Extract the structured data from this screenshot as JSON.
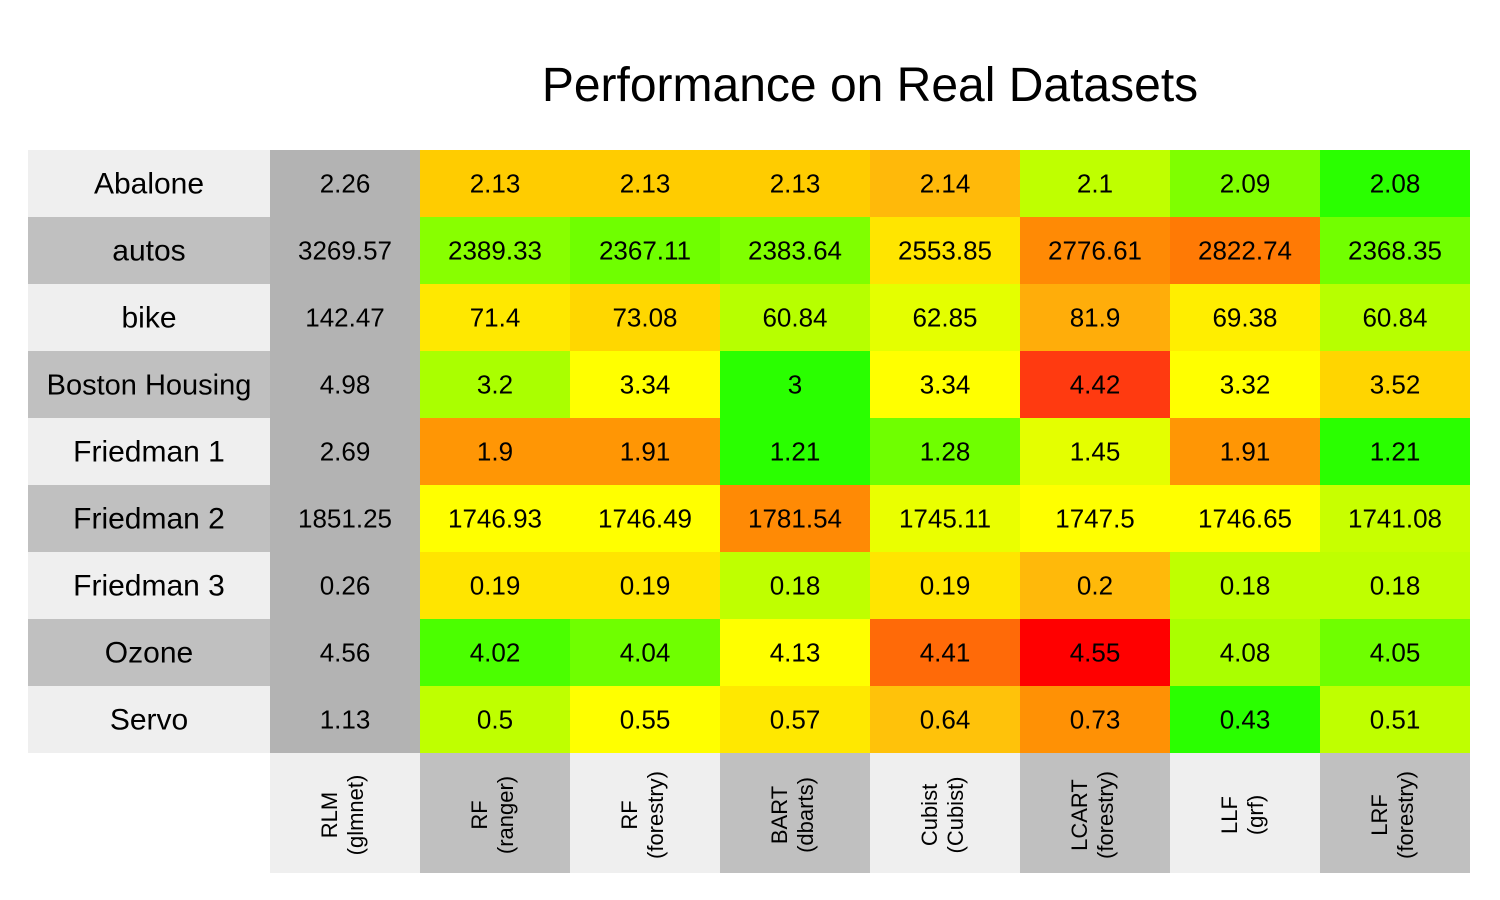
{
  "chart_data": {
    "type": "heatmap",
    "title": "Performance on Real Datasets",
    "rows": [
      "Abalone",
      "autos",
      "bike",
      "Boston Housing",
      "Friedman 1",
      "Friedman 2",
      "Friedman 3",
      "Ozone",
      "Servo"
    ],
    "columns": [
      {
        "name": "RLM",
        "package": "(glmnet)"
      },
      {
        "name": "RF",
        "package": "(ranger)"
      },
      {
        "name": "RF",
        "package": "(forestry)"
      },
      {
        "name": "BART",
        "package": "(dbarts)"
      },
      {
        "name": "Cubist",
        "package": "(Cubist)"
      },
      {
        "name": "LCART",
        "package": "(forestry)"
      },
      {
        "name": "LLF",
        "package": "(grf)"
      },
      {
        "name": "LRF",
        "package": "(forestry)"
      }
    ],
    "values": [
      [
        "2.26",
        "2.13",
        "2.13",
        "2.13",
        "2.14",
        "2.1",
        "2.09",
        "2.08"
      ],
      [
        "3269.57",
        "2389.33",
        "2367.11",
        "2383.64",
        "2553.85",
        "2776.61",
        "2822.74",
        "2368.35"
      ],
      [
        "142.47",
        "71.4",
        "73.08",
        "60.84",
        "62.85",
        "81.9",
        "69.38",
        "60.84"
      ],
      [
        "4.98",
        "3.2",
        "3.34",
        "3",
        "3.34",
        "4.42",
        "3.32",
        "3.52"
      ],
      [
        "2.69",
        "1.9",
        "1.91",
        "1.21",
        "1.28",
        "1.45",
        "1.91",
        "1.21"
      ],
      [
        "1851.25",
        "1746.93",
        "1746.49",
        "1781.54",
        "1745.11",
        "1747.5",
        "1746.65",
        "1741.08"
      ],
      [
        "0.26",
        "0.19",
        "0.19",
        "0.18",
        "0.19",
        "0.2",
        "0.18",
        "0.18"
      ],
      [
        "4.56",
        "4.02",
        "4.04",
        "4.13",
        "4.41",
        "4.55",
        "4.08",
        "4.05"
      ],
      [
        "1.13",
        "0.5",
        "0.55",
        "0.57",
        "0.64",
        "0.73",
        "0.43",
        "0.51"
      ]
    ],
    "cell_colors": [
      [
        "#b3b3b3",
        "#ffcc00",
        "#ffcc00",
        "#ffcc00",
        "#ffb90a",
        "#bfff00",
        "#7fff00",
        "#2aff00"
      ],
      [
        "#b3b3b3",
        "#88ff00",
        "#6fff00",
        "#80ff00",
        "#ffe500",
        "#ff8a05",
        "#ff7a05",
        "#72ff00"
      ],
      [
        "#b3b3b3",
        "#ffe800",
        "#ffd700",
        "#b7ff00",
        "#e4ff00",
        "#ffad0a",
        "#ffee00",
        "#b7ff00"
      ],
      [
        "#b3b3b3",
        "#aaff00",
        "#ffff00",
        "#2aff00",
        "#ffff00",
        "#ff3a10",
        "#ffff00",
        "#ffd500"
      ],
      [
        "#b3b3b3",
        "#ff9605",
        "#ff9605",
        "#2aff00",
        "#6fff00",
        "#e4ff00",
        "#ff9605",
        "#2aff00"
      ],
      [
        "#b3b3b3",
        "#ffff00",
        "#ffff00",
        "#ff8a05",
        "#eaff00",
        "#ffff00",
        "#ffff00",
        "#c8ff00"
      ],
      [
        "#b3b3b3",
        "#ffe500",
        "#ffe500",
        "#bfff00",
        "#ffe500",
        "#ffb90a",
        "#bfff00",
        "#bfff00"
      ],
      [
        "#b3b3b3",
        "#4bff00",
        "#6fff00",
        "#ffff00",
        "#ff6a08",
        "#ff0000",
        "#aaff00",
        "#6fff00"
      ],
      [
        "#b3b3b3",
        "#bfff00",
        "#ffff00",
        "#ffe800",
        "#ffc20a",
        "#ff9105",
        "#2aff00",
        "#bfff00"
      ]
    ],
    "grid": false,
    "legend": "none"
  }
}
